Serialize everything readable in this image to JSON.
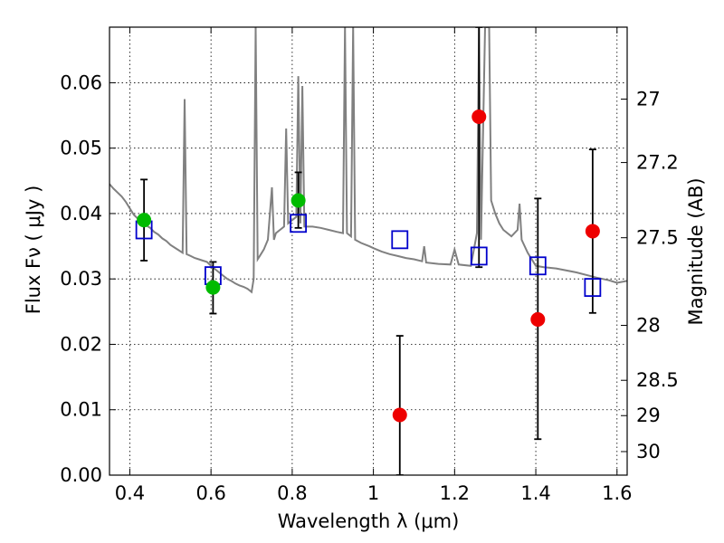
{
  "chart_data": {
    "type": "scatter",
    "xlabel": "Wavelength  λ (μm)",
    "ylabel": "Flux  Fν  ( μJy )",
    "ylabel_right": "Magnitude (AB)",
    "xlim": [
      0.35,
      1.625
    ],
    "ylim": [
      0.0,
      0.0685
    ],
    "grid": true,
    "colors": {
      "spectrum": "#808080",
      "model_boxes": "#0000cc",
      "green_points": "#00bb00",
      "red_points": "#ee0000",
      "error_bars": "#000000"
    },
    "x_ticks": [
      {
        "value": 0.4,
        "label": "0.4"
      },
      {
        "value": 0.6,
        "label": "0.6"
      },
      {
        "value": 0.8,
        "label": "0.8"
      },
      {
        "value": 1.0,
        "label": "1"
      },
      {
        "value": 1.2,
        "label": "1.2"
      },
      {
        "value": 1.4,
        "label": "1.4"
      },
      {
        "value": 1.6,
        "label": "1.6"
      }
    ],
    "y_ticks": [
      {
        "value": 0.0,
        "label": "0.00"
      },
      {
        "value": 0.01,
        "label": "0.01"
      },
      {
        "value": 0.02,
        "label": "0.02"
      },
      {
        "value": 0.03,
        "label": "0.03"
      },
      {
        "value": 0.04,
        "label": "0.04"
      },
      {
        "value": 0.05,
        "label": "0.05"
      },
      {
        "value": 0.06,
        "label": "0.06"
      }
    ],
    "right_ticks": [
      {
        "flux": 0.0575,
        "label": "27"
      },
      {
        "flux": 0.0478,
        "label": "27.2"
      },
      {
        "flux": 0.0363,
        "label": "27.5"
      },
      {
        "flux": 0.0229,
        "label": "28"
      },
      {
        "flux": 0.0145,
        "label": "28.5"
      },
      {
        "flux": 0.0091,
        "label": "29"
      },
      {
        "flux": 0.0036,
        "label": "30"
      }
    ],
    "spectrum": [
      [
        0.35,
        0.0445
      ],
      [
        0.36,
        0.0438
      ],
      [
        0.37,
        0.0432
      ],
      [
        0.38,
        0.0426
      ],
      [
        0.39,
        0.0418
      ],
      [
        0.4,
        0.0408
      ],
      [
        0.41,
        0.0398
      ],
      [
        0.42,
        0.0392
      ],
      [
        0.43,
        0.0388
      ],
      [
        0.44,
        0.0382
      ],
      [
        0.45,
        0.0378
      ],
      [
        0.46,
        0.0372
      ],
      [
        0.47,
        0.0368
      ],
      [
        0.48,
        0.0362
      ],
      [
        0.49,
        0.0358
      ],
      [
        0.5,
        0.0352
      ],
      [
        0.51,
        0.0348
      ],
      [
        0.52,
        0.0344
      ],
      [
        0.53,
        0.034
      ],
      [
        0.535,
        0.0575
      ],
      [
        0.54,
        0.0338
      ],
      [
        0.55,
        0.0335
      ],
      [
        0.56,
        0.0332
      ],
      [
        0.57,
        0.033
      ],
      [
        0.58,
        0.0328
      ],
      [
        0.59,
        0.0326
      ],
      [
        0.6,
        0.032
      ],
      [
        0.61,
        0.0315
      ],
      [
        0.62,
        0.031
      ],
      [
        0.63,
        0.0305
      ],
      [
        0.64,
        0.03
      ],
      [
        0.65,
        0.0297
      ],
      [
        0.66,
        0.0293
      ],
      [
        0.67,
        0.029
      ],
      [
        0.68,
        0.0288
      ],
      [
        0.69,
        0.0285
      ],
      [
        0.7,
        0.028
      ],
      [
        0.705,
        0.03
      ],
      [
        0.71,
        0.0685
      ],
      [
        0.715,
        0.033
      ],
      [
        0.72,
        0.0335
      ],
      [
        0.73,
        0.0345
      ],
      [
        0.74,
        0.036
      ],
      [
        0.75,
        0.044
      ],
      [
        0.755,
        0.036
      ],
      [
        0.76,
        0.037
      ],
      [
        0.77,
        0.0375
      ],
      [
        0.78,
        0.038
      ],
      [
        0.785,
        0.053
      ],
      [
        0.79,
        0.0385
      ],
      [
        0.8,
        0.039
      ],
      [
        0.81,
        0.0395
      ],
      [
        0.815,
        0.061
      ],
      [
        0.82,
        0.0385
      ],
      [
        0.825,
        0.0595
      ],
      [
        0.83,
        0.038
      ],
      [
        0.85,
        0.038
      ],
      [
        0.87,
        0.0378
      ],
      [
        0.89,
        0.0375
      ],
      [
        0.91,
        0.0372
      ],
      [
        0.925,
        0.037
      ],
      [
        0.93,
        0.0685
      ],
      [
        0.935,
        0.037
      ],
      [
        0.945,
        0.0365
      ],
      [
        0.95,
        0.0685
      ],
      [
        0.955,
        0.036
      ],
      [
        0.97,
        0.0355
      ],
      [
        0.99,
        0.035
      ],
      [
        1.0,
        0.0347
      ],
      [
        1.02,
        0.0342
      ],
      [
        1.04,
        0.0338
      ],
      [
        1.06,
        0.0335
      ],
      [
        1.08,
        0.0332
      ],
      [
        1.1,
        0.033
      ],
      [
        1.12,
        0.0327
      ],
      [
        1.125,
        0.035
      ],
      [
        1.13,
        0.0325
      ],
      [
        1.16,
        0.0323
      ],
      [
        1.19,
        0.0322
      ],
      [
        1.2,
        0.0345
      ],
      [
        1.21,
        0.0322
      ],
      [
        1.24,
        0.032
      ],
      [
        1.255,
        0.037
      ],
      [
        1.26,
        0.0685
      ],
      [
        1.265,
        0.036
      ],
      [
        1.275,
        0.0685
      ],
      [
        1.285,
        0.0685
      ],
      [
        1.29,
        0.042
      ],
      [
        1.3,
        0.04
      ],
      [
        1.31,
        0.0385
      ],
      [
        1.32,
        0.0375
      ],
      [
        1.34,
        0.0365
      ],
      [
        1.355,
        0.0375
      ],
      [
        1.36,
        0.0415
      ],
      [
        1.365,
        0.036
      ],
      [
        1.38,
        0.034
      ],
      [
        1.4,
        0.032
      ],
      [
        1.42,
        0.0318
      ],
      [
        1.45,
        0.0316
      ],
      [
        1.5,
        0.031
      ],
      [
        1.55,
        0.0302
      ],
      [
        1.58,
        0.0298
      ],
      [
        1.6,
        0.0294
      ],
      [
        1.625,
        0.0297
      ]
    ],
    "series": [
      {
        "marker": "box",
        "points": [
          {
            "x": 0.435,
            "y": 0.0375
          },
          {
            "x": 0.605,
            "y": 0.0305
          },
          {
            "x": 0.815,
            "y": 0.0385
          },
          {
            "x": 1.065,
            "y": 0.036
          },
          {
            "x": 1.26,
            "y": 0.0335
          },
          {
            "x": 1.405,
            "y": 0.032
          },
          {
            "x": 1.54,
            "y": 0.0287
          }
        ]
      },
      {
        "marker": "circle",
        "points": [
          {
            "x": 0.435,
            "y": 0.039,
            "err_low": 0.0328,
            "err_high": 0.0452
          },
          {
            "x": 0.605,
            "y": 0.0287,
            "err_low": 0.0247,
            "err_high": 0.0326
          },
          {
            "x": 0.815,
            "y": 0.042,
            "err_low": 0.0378,
            "err_high": 0.0463
          }
        ]
      },
      {
        "marker": "circle",
        "points": [
          {
            "x": 1.065,
            "y": 0.0092,
            "err_low": 0.0,
            "err_high": 0.0213
          },
          {
            "x": 1.26,
            "y": 0.0548,
            "err_low": 0.0318,
            "err_high": 0.0685
          },
          {
            "x": 1.405,
            "y": 0.0238,
            "err_low": 0.0055,
            "err_high": 0.0423
          },
          {
            "x": 1.54,
            "y": 0.0373,
            "err_low": 0.0248,
            "err_high": 0.0498
          }
        ]
      }
    ]
  }
}
